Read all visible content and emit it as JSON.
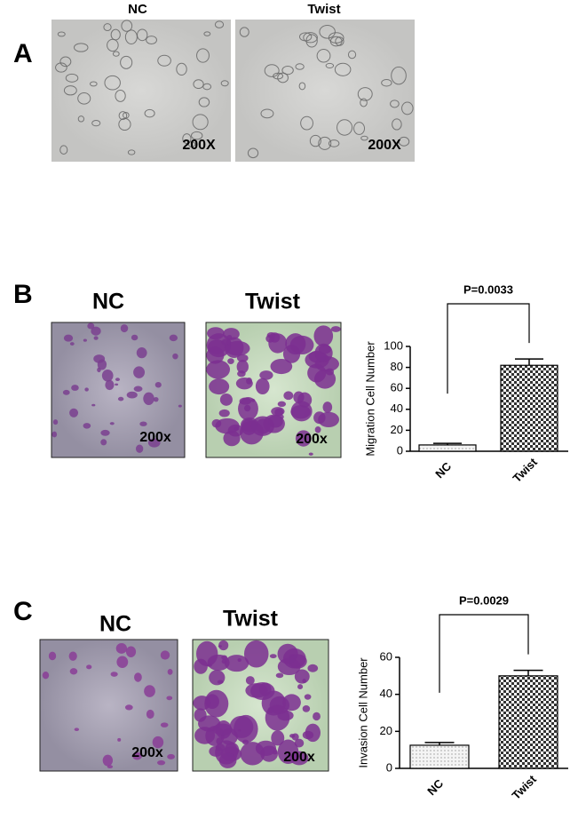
{
  "panels": [
    {
      "label": "A",
      "images": [
        {
          "title": "NC",
          "magnification": "200X"
        },
        {
          "title": "Twist",
          "magnification": "200X"
        }
      ]
    },
    {
      "label": "B",
      "images": [
        {
          "title": "NC",
          "magnification": "200x"
        },
        {
          "title": "Twist",
          "magnification": "200x"
        }
      ]
    },
    {
      "label": "C",
      "images": [
        {
          "title": "NC",
          "magnification": "200x"
        },
        {
          "title": "Twist",
          "magnification": "200x"
        }
      ]
    }
  ],
  "chart_data": [
    {
      "type": "bar",
      "y_label": "Migration Cell Number",
      "categories": [
        "NC",
        "Twist"
      ],
      "values": [
        6,
        82
      ],
      "errors": [
        1.5,
        6
      ],
      "ylim": [
        0,
        100
      ],
      "yticks": [
        0,
        20,
        40,
        60,
        80,
        100
      ],
      "annotation": "P=0.0033"
    },
    {
      "type": "bar",
      "y_label": "Invasion Cell Number",
      "categories": [
        "NC",
        "Twist"
      ],
      "values": [
        12.5,
        50
      ],
      "errors": [
        1.5,
        3
      ],
      "ylim": [
        0,
        60
      ],
      "yticks": [
        0,
        20,
        40,
        60
      ],
      "annotation": "P=0.0029"
    }
  ]
}
